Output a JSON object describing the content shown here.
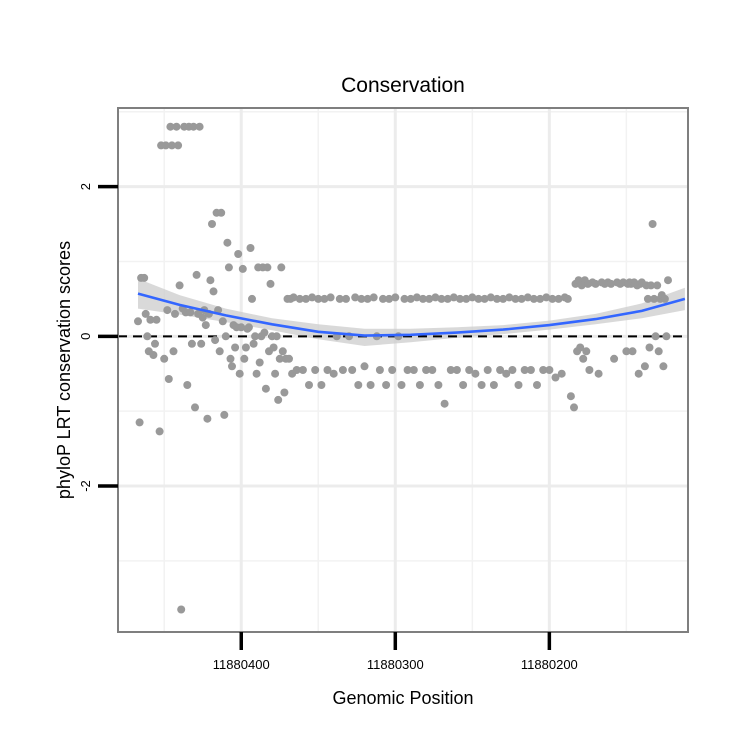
{
  "chart_data": {
    "type": "scatter",
    "title": "Conservation",
    "xlabel": "Genomic Position",
    "ylabel": "phyloP LRT conservation scores",
    "x_reversed": true,
    "xlim": [
      11880110,
      11880480
    ],
    "ylim": [
      -3.95,
      3.05
    ],
    "x_ticks": [
      11880400,
      11880300,
      11880200
    ],
    "x_tick_labels": [
      "11880400",
      "11880300",
      "11880200"
    ],
    "y_ticks": [
      2,
      0,
      -2
    ],
    "y_tick_labels": [
      "2",
      "0",
      "-2"
    ],
    "grid": true,
    "reference_line": {
      "y": 0,
      "style": "dashed",
      "color": "#000000"
    },
    "smooth_fit": {
      "method": "loess",
      "color": "#3366FF",
      "band_color": "#CCCCCC",
      "x": [
        11880467,
        11880440,
        11880410,
        11880380,
        11880350,
        11880320,
        11880290,
        11880260,
        11880230,
        11880200,
        11880170,
        11880140,
        11880112
      ],
      "y": [
        0.57,
        0.42,
        0.28,
        0.16,
        0.06,
        0.01,
        0.02,
        0.05,
        0.09,
        0.15,
        0.23,
        0.34,
        0.5
      ],
      "lower": [
        0.37,
        0.29,
        0.19,
        0.08,
        -0.04,
        -0.13,
        -0.08,
        -0.02,
        0.03,
        0.09,
        0.16,
        0.24,
        0.35
      ],
      "upper": [
        0.77,
        0.55,
        0.37,
        0.24,
        0.16,
        0.1,
        0.1,
        0.12,
        0.15,
        0.21,
        0.3,
        0.44,
        0.65
      ]
    },
    "series": [
      {
        "name": "phyloP LRT score",
        "color": "#999999",
        "points": [
          [
            11880467,
            0.2
          ],
          [
            11880466,
            -1.15
          ],
          [
            11880465,
            0.78
          ],
          [
            11880463,
            0.78
          ],
          [
            11880462,
            0.3
          ],
          [
            11880461,
            0
          ],
          [
            11880460,
            -0.2
          ],
          [
            11880459,
            0.22
          ],
          [
            11880457,
            -0.25
          ],
          [
            11880456,
            -0.1
          ],
          [
            11880455,
            0.22
          ],
          [
            11880453,
            -1.27
          ],
          [
            11880452,
            2.55
          ],
          [
            11880450,
            -0.3
          ],
          [
            11880449,
            2.55
          ],
          [
            11880448,
            0.35
          ],
          [
            11880447,
            -0.57
          ],
          [
            11880446,
            2.8
          ],
          [
            11880445,
            2.55
          ],
          [
            11880444,
            -0.2
          ],
          [
            11880443,
            0.3
          ],
          [
            11880442,
            2.8
          ],
          [
            11880441,
            2.55
          ],
          [
            11880440,
            0.68
          ],
          [
            11880439,
            -3.65
          ],
          [
            11880438,
            0.37
          ],
          [
            11880437,
            2.8
          ],
          [
            11880436,
            0.32
          ],
          [
            11880435,
            -0.65
          ],
          [
            11880434,
            2.8
          ],
          [
            11880433,
            0.32
          ],
          [
            11880432,
            -0.1
          ],
          [
            11880431,
            2.8
          ],
          [
            11880430,
            -0.95
          ],
          [
            11880429,
            0.82
          ],
          [
            11880428,
            0.3
          ],
          [
            11880427,
            2.8
          ],
          [
            11880426,
            -0.1
          ],
          [
            11880425,
            0.25
          ],
          [
            11880424,
            0.35
          ],
          [
            11880423,
            0.15
          ],
          [
            11880422,
            -1.1
          ],
          [
            11880421,
            0.3
          ],
          [
            11880420,
            0.75
          ],
          [
            11880419,
            1.5
          ],
          [
            11880418,
            0.6
          ],
          [
            11880417,
            -0.05
          ],
          [
            11880416,
            1.65
          ],
          [
            11880415,
            0.35
          ],
          [
            11880414,
            -0.2
          ],
          [
            11880413,
            1.65
          ],
          [
            11880412,
            0.2
          ],
          [
            11880411,
            -1.05
          ],
          [
            11880410,
            0
          ],
          [
            11880409,
            1.25
          ],
          [
            11880408,
            0.92
          ],
          [
            11880407,
            -0.3
          ],
          [
            11880406,
            -0.4
          ],
          [
            11880405,
            0.15
          ],
          [
            11880404,
            -0.15
          ],
          [
            11880403,
            0.12
          ],
          [
            11880402,
            1.1
          ],
          [
            11880401,
            -0.5
          ],
          [
            11880400,
            0.12
          ],
          [
            11880399,
            0.9
          ],
          [
            11880398,
            -0.3
          ],
          [
            11880397,
            -0.15
          ],
          [
            11880396,
            0.1
          ],
          [
            11880395,
            0.12
          ],
          [
            11880394,
            1.18
          ],
          [
            11880393,
            0.5
          ],
          [
            11880392,
            -0.1
          ],
          [
            11880391,
            0
          ],
          [
            11880390,
            -0.5
          ],
          [
            11880389,
            0.92
          ],
          [
            11880388,
            -0.35
          ],
          [
            11880387,
            0
          ],
          [
            11880386,
            0.92
          ],
          [
            11880385,
            0.05
          ],
          [
            11880384,
            -0.7
          ],
          [
            11880383,
            0.92
          ],
          [
            11880382,
            -0.2
          ],
          [
            11880381,
            0.7
          ],
          [
            11880380,
            0
          ],
          [
            11880379,
            -0.15
          ],
          [
            11880378,
            -0.5
          ],
          [
            11880377,
            0
          ],
          [
            11880376,
            -0.85
          ],
          [
            11880375,
            -0.3
          ],
          [
            11880374,
            0.92
          ],
          [
            11880373,
            -0.2
          ],
          [
            11880372,
            -0.75
          ],
          [
            11880371,
            -0.3
          ],
          [
            11880370,
            0.5
          ],
          [
            11880369,
            -0.3
          ],
          [
            11880368,
            0.5
          ],
          [
            11880367,
            -0.5
          ],
          [
            11880366,
            0.52
          ],
          [
            11880364,
            -0.45
          ],
          [
            11880362,
            0.5
          ],
          [
            11880360,
            -0.45
          ],
          [
            11880358,
            0.5
          ],
          [
            11880356,
            -0.65
          ],
          [
            11880354,
            0.52
          ],
          [
            11880352,
            -0.45
          ],
          [
            11880350,
            0.5
          ],
          [
            11880348,
            -0.65
          ],
          [
            11880346,
            0.5
          ],
          [
            11880344,
            -0.45
          ],
          [
            11880342,
            0.52
          ],
          [
            11880340,
            -0.5
          ],
          [
            11880338,
            0
          ],
          [
            11880336,
            0.5
          ],
          [
            11880334,
            -0.45
          ],
          [
            11880332,
            0.5
          ],
          [
            11880330,
            0
          ],
          [
            11880328,
            -0.45
          ],
          [
            11880326,
            0.52
          ],
          [
            11880324,
            -0.65
          ],
          [
            11880322,
            0.5
          ],
          [
            11880320,
            -0.4
          ],
          [
            11880318,
            0.5
          ],
          [
            11880316,
            -0.65
          ],
          [
            11880314,
            0.52
          ],
          [
            11880312,
            0
          ],
          [
            11880310,
            -0.45
          ],
          [
            11880308,
            0.5
          ],
          [
            11880306,
            -0.65
          ],
          [
            11880304,
            0.5
          ],
          [
            11880302,
            -0.45
          ],
          [
            11880300,
            0.52
          ],
          [
            11880298,
            0
          ],
          [
            11880296,
            -0.65
          ],
          [
            11880294,
            0.5
          ],
          [
            11880292,
            -0.45
          ],
          [
            11880290,
            0.5
          ],
          [
            11880288,
            -0.45
          ],
          [
            11880286,
            0.52
          ],
          [
            11880284,
            -0.65
          ],
          [
            11880282,
            0.5
          ],
          [
            11880280,
            -0.45
          ],
          [
            11880278,
            0.5
          ],
          [
            11880276,
            -0.45
          ],
          [
            11880274,
            0.52
          ],
          [
            11880272,
            -0.65
          ],
          [
            11880270,
            0.5
          ],
          [
            11880268,
            -0.9
          ],
          [
            11880266,
            0.5
          ],
          [
            11880264,
            -0.45
          ],
          [
            11880262,
            0.52
          ],
          [
            11880260,
            -0.45
          ],
          [
            11880258,
            0.5
          ],
          [
            11880256,
            -0.65
          ],
          [
            11880254,
            0.5
          ],
          [
            11880252,
            -0.45
          ],
          [
            11880250,
            0.52
          ],
          [
            11880248,
            -0.5
          ],
          [
            11880246,
            0.5
          ],
          [
            11880244,
            -0.65
          ],
          [
            11880242,
            0.5
          ],
          [
            11880240,
            -0.45
          ],
          [
            11880238,
            0.52
          ],
          [
            11880236,
            -0.65
          ],
          [
            11880234,
            0.5
          ],
          [
            11880232,
            -0.45
          ],
          [
            11880230,
            0.5
          ],
          [
            11880228,
            -0.5
          ],
          [
            11880226,
            0.52
          ],
          [
            11880224,
            -0.45
          ],
          [
            11880222,
            0.5
          ],
          [
            11880220,
            -0.65
          ],
          [
            11880218,
            0.5
          ],
          [
            11880216,
            -0.45
          ],
          [
            11880214,
            0.52
          ],
          [
            11880212,
            -0.45
          ],
          [
            11880210,
            0.5
          ],
          [
            11880208,
            -0.65
          ],
          [
            11880206,
            0.5
          ],
          [
            11880204,
            -0.45
          ],
          [
            11880202,
            0.52
          ],
          [
            11880200,
            -0.45
          ],
          [
            11880198,
            0.5
          ],
          [
            11880196,
            -0.55
          ],
          [
            11880194,
            0.5
          ],
          [
            11880192,
            -0.5
          ],
          [
            11880190,
            0.52
          ],
          [
            11880188,
            0.5
          ],
          [
            11880186,
            -0.8
          ],
          [
            11880184,
            -0.95
          ],
          [
            11880183,
            0.7
          ],
          [
            11880182,
            -0.2
          ],
          [
            11880181,
            0.75
          ],
          [
            11880180,
            -0.15
          ],
          [
            11880179,
            0.68
          ],
          [
            11880178,
            -0.3
          ],
          [
            11880177,
            0.75
          ],
          [
            11880176,
            -0.2
          ],
          [
            11880175,
            0.7
          ],
          [
            11880174,
            -0.45
          ],
          [
            11880172,
            0.72
          ],
          [
            11880170,
            0.7
          ],
          [
            11880168,
            -0.5
          ],
          [
            11880166,
            0.72
          ],
          [
            11880164,
            0.7
          ],
          [
            11880162,
            0.72
          ],
          [
            11880160,
            0.7
          ],
          [
            11880158,
            -0.3
          ],
          [
            11880156,
            0.72
          ],
          [
            11880154,
            0.7
          ],
          [
            11880152,
            0.72
          ],
          [
            11880150,
            -0.2
          ],
          [
            11880149,
            0.7
          ],
          [
            11880148,
            0.72
          ],
          [
            11880147,
            0.7
          ],
          [
            11880146,
            -0.2
          ],
          [
            11880145,
            0.72
          ],
          [
            11880144,
            0.7
          ],
          [
            11880143,
            0.68
          ],
          [
            11880142,
            -0.5
          ],
          [
            11880141,
            0.7
          ],
          [
            11880140,
            0.72
          ],
          [
            11880138,
            -0.4
          ],
          [
            11880137,
            0.68
          ],
          [
            11880136,
            0.5
          ],
          [
            11880135,
            -0.15
          ],
          [
            11880134,
            0.68
          ],
          [
            11880133,
            1.5
          ],
          [
            11880132,
            0.5
          ],
          [
            11880131,
            0
          ],
          [
            11880130,
            0.68
          ],
          [
            11880129,
            -0.2
          ],
          [
            11880128,
            0.5
          ],
          [
            11880127,
            0.55
          ],
          [
            11880126,
            -0.4
          ],
          [
            11880125,
            0.5
          ],
          [
            11880124,
            0
          ],
          [
            11880123,
            0.75
          ]
        ]
      }
    ]
  }
}
